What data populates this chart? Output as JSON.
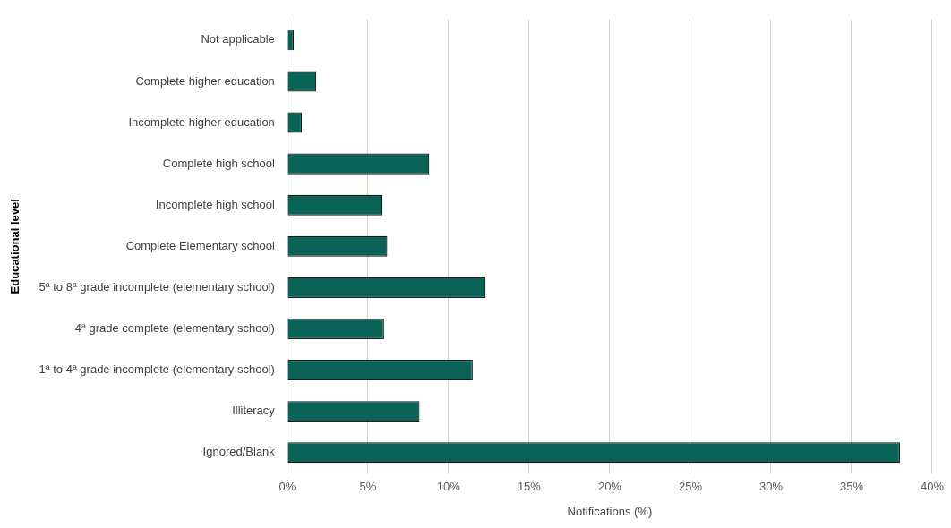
{
  "chart_data": {
    "type": "bar",
    "orientation": "horizontal",
    "xlabel": "Notifications (%)",
    "ylabel": "Educational level",
    "categories": [
      "Not applicable",
      "Complete higher education",
      "Incomplete higher education",
      "Complete high school",
      "Incomplete high school",
      "Complete Elementary school",
      "5ª to 8ª grade incomplete (elementary school)",
      "4ª grade complete (elementary school)",
      "1ª to 4ª grade incomplete (elementary school)",
      "Illiteracy",
      "Ignored/Blank"
    ],
    "values": [
      0.4,
      1.8,
      0.9,
      8.8,
      5.9,
      6.2,
      12.3,
      6.0,
      11.5,
      8.2,
      38.0
    ],
    "color": "#0b6358",
    "xlim": [
      0,
      40
    ],
    "xticks": [
      {
        "value": 0,
        "label": "0%"
      },
      {
        "value": 5,
        "label": "5%"
      },
      {
        "value": 10,
        "label": "10%"
      },
      {
        "value": 15,
        "label": "15%"
      },
      {
        "value": 20,
        "label": "20%"
      },
      {
        "value": 25,
        "label": "25%"
      },
      {
        "value": 30,
        "label": "30%"
      },
      {
        "value": 35,
        "label": "35%"
      },
      {
        "value": 40,
        "label": "40%"
      }
    ],
    "grid": "x",
    "legend": false
  }
}
